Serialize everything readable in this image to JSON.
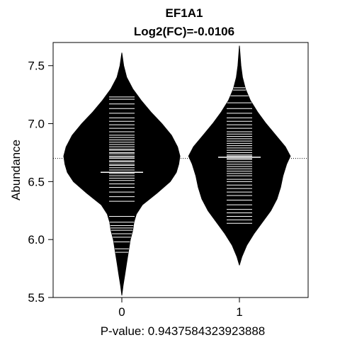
{
  "chart_data": {
    "type": "beanplot",
    "title": "EF1A1",
    "subtitle": "Log2(FC)=-0.0106",
    "xlabel": "P-value: 0.9437584323923888",
    "ylabel": "Abundance",
    "categories": [
      "0",
      "1"
    ],
    "ylim": [
      5.5,
      7.7
    ],
    "yticks": [
      "5.5",
      "6.0",
      "6.5",
      "7.0",
      "7.5"
    ],
    "overall_mean": 6.7,
    "groups": [
      {
        "name": "0",
        "mean": 6.58,
        "range": [
          5.52,
          7.61
        ],
        "density": [
          [
            5.52,
            0.0
          ],
          [
            5.6,
            0.01
          ],
          [
            5.7,
            0.025
          ],
          [
            5.8,
            0.04
          ],
          [
            5.9,
            0.055
          ],
          [
            6.0,
            0.07
          ],
          [
            6.08,
            0.09
          ],
          [
            6.15,
            0.1
          ],
          [
            6.22,
            0.12
          ],
          [
            6.3,
            0.17
          ],
          [
            6.4,
            0.29
          ],
          [
            6.5,
            0.4
          ],
          [
            6.58,
            0.45
          ],
          [
            6.65,
            0.47
          ],
          [
            6.72,
            0.48
          ],
          [
            6.8,
            0.46
          ],
          [
            6.9,
            0.41
          ],
          [
            7.0,
            0.33
          ],
          [
            7.1,
            0.24
          ],
          [
            7.2,
            0.16
          ],
          [
            7.3,
            0.09
          ],
          [
            7.4,
            0.04
          ],
          [
            7.5,
            0.015
          ],
          [
            7.61,
            0.0
          ]
        ],
        "observations": [
          5.89,
          5.92,
          5.98,
          6.02,
          6.05,
          6.08,
          6.1,
          6.12,
          6.15,
          6.2,
          6.33,
          6.37,
          6.41,
          6.45,
          6.48,
          6.51,
          6.53,
          6.55,
          6.57,
          6.58,
          6.6,
          6.62,
          6.64,
          6.65,
          6.67,
          6.68,
          6.7,
          6.71,
          6.72,
          6.74,
          6.75,
          6.77,
          6.78,
          6.8,
          6.82,
          6.84,
          6.86,
          6.88,
          6.9,
          6.93,
          6.96,
          6.99,
          7.02,
          7.05,
          7.09,
          7.13,
          7.17,
          7.21,
          7.23
        ]
      },
      {
        "name": "1",
        "mean": 6.71,
        "range": [
          5.78,
          7.67
        ],
        "density": [
          [
            5.78,
            0.0
          ],
          [
            5.85,
            0.02
          ],
          [
            5.95,
            0.06
          ],
          [
            6.05,
            0.12
          ],
          [
            6.15,
            0.19
          ],
          [
            6.25,
            0.26
          ],
          [
            6.35,
            0.31
          ],
          [
            6.45,
            0.34
          ],
          [
            6.55,
            0.36
          ],
          [
            6.65,
            0.39
          ],
          [
            6.72,
            0.42
          ],
          [
            6.8,
            0.38
          ],
          [
            6.9,
            0.3
          ],
          [
            7.0,
            0.22
          ],
          [
            7.1,
            0.15
          ],
          [
            7.2,
            0.09
          ],
          [
            7.3,
            0.05
          ],
          [
            7.4,
            0.025
          ],
          [
            7.5,
            0.012
          ],
          [
            7.67,
            0.0
          ]
        ],
        "observations": [
          6.14,
          6.17,
          6.2,
          6.23,
          6.26,
          6.3,
          6.34,
          6.38,
          6.41,
          6.44,
          6.47,
          6.5,
          6.52,
          6.55,
          6.57,
          6.59,
          6.61,
          6.63,
          6.65,
          6.67,
          6.69,
          6.7,
          6.72,
          6.73,
          6.75,
          6.77,
          6.79,
          6.81,
          6.83,
          6.85,
          6.87,
          6.89,
          6.91,
          6.93,
          6.96,
          6.99,
          7.02,
          7.05,
          7.09,
          7.13,
          7.18,
          7.24,
          7.29,
          7.31
        ]
      }
    ],
    "bean_color": "#000000",
    "line_color": "#ffffff",
    "grid": false,
    "legend": "none"
  }
}
